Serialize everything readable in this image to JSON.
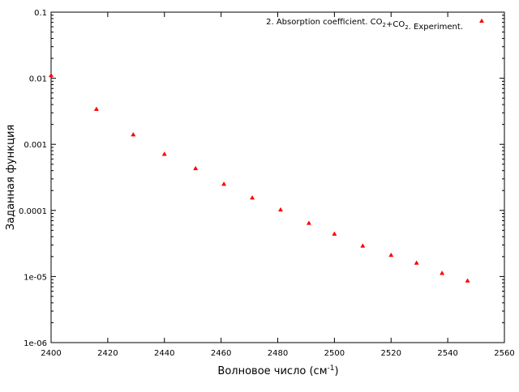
{
  "chart_data": {
    "type": "scatter",
    "title": "",
    "xlabel": {
      "text": "Волновое число (см",
      "sup": "-1",
      "suffix": ")"
    },
    "ylabel": "Заданная функция",
    "xlim": [
      2400,
      2560
    ],
    "ylim": [
      1e-06,
      0.1
    ],
    "yscale": "log",
    "grid": false,
    "legend_position": "top-right",
    "x_ticks": [
      2400,
      2420,
      2440,
      2460,
      2480,
      2500,
      2520,
      2540,
      2560
    ],
    "y_ticks": [
      0.1,
      0.01,
      0.001,
      0.0001,
      1e-05,
      1e-06
    ],
    "x_tick_labels": [
      "2400",
      "2420",
      "2440",
      "2460",
      "2480",
      "2500",
      "2520",
      "2540",
      "2560"
    ],
    "y_tick_labels": [
      "0.1",
      "0.01",
      "0.001",
      "0.0001",
      "1e-05",
      "1e-06"
    ],
    "series": [
      {
        "name": "2. Absorption coefficient. CO2+CO2. Experiment.",
        "color": "#ff0000",
        "marker": "triangle",
        "legend_parts": [
          {
            "t": "2. Absorption coefficient. CO"
          },
          {
            "t": "2",
            "sub": true
          },
          {
            "t": "+CO"
          },
          {
            "t": "2",
            "sub": true
          },
          {
            "t": ". Experiment."
          }
        ],
        "x": [
          2400,
          2416,
          2429,
          2440,
          2451,
          2461,
          2471,
          2481,
          2491,
          2500,
          2510,
          2520,
          2529,
          2538,
          2547
        ],
        "y": [
          0.011,
          0.0034,
          0.0014,
          0.00071,
          0.00043,
          0.00025,
          0.000155,
          0.000102,
          6.4e-05,
          4.4e-05,
          2.9e-05,
          2.1e-05,
          1.6e-05,
          1.12e-05,
          8.6e-06
        ]
      }
    ]
  }
}
